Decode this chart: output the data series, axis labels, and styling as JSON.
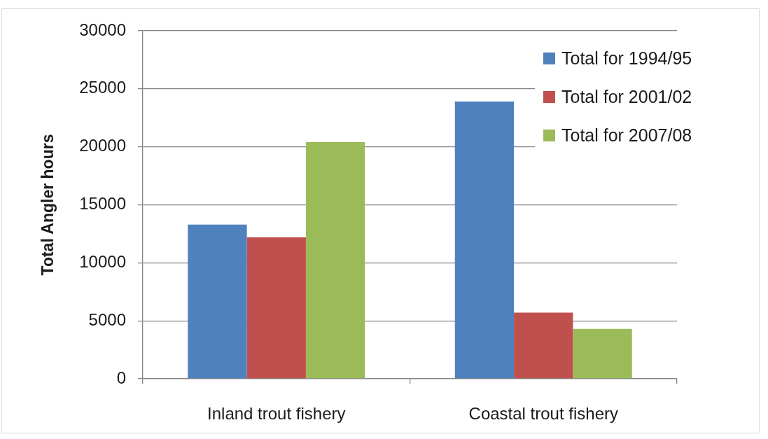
{
  "chart_data": {
    "type": "bar",
    "categories": [
      "Inland trout fishery",
      "Coastal trout fishery"
    ],
    "series": [
      {
        "name": "Total for 1994/95",
        "color": "#4f81bd",
        "values": [
          13300,
          23900
        ]
      },
      {
        "name": "Total for 2001/02",
        "color": "#c0504d",
        "values": [
          12200,
          5700
        ]
      },
      {
        "name": "Total for 2007/08",
        "color": "#9bbb59",
        "values": [
          20400,
          4300
        ]
      }
    ],
    "ylabel": "Total Angler hours",
    "ylim": [
      0,
      30000
    ],
    "yticks": [
      0,
      5000,
      10000,
      15000,
      20000,
      25000,
      30000
    ],
    "grid": "y",
    "legend": "top right"
  }
}
